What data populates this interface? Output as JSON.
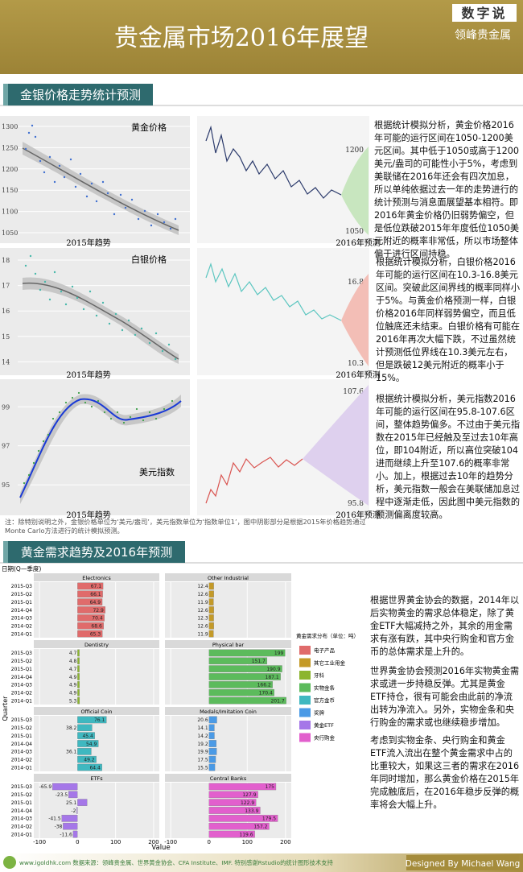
{
  "header": {
    "title": "贵金属市场2016年展望",
    "badge": "数字说",
    "brand": "领峰贵金属"
  },
  "section1": {
    "title": "金银价格走势统计预测",
    "rows": [
      {
        "name": "黄金价格",
        "ylim": [
          1033,
          1317
        ],
        "yticks": [
          1050,
          1100,
          1150,
          1200,
          1250,
          1300
        ],
        "trend_label": "2015年趋势",
        "forecast_label": "2016年预测",
        "upper": 1200,
        "lower": 1050,
        "text": "根据统计模拟分析，黄金价格2016年可能的运行区间在1050-1200美元区间。其中低于1050或高于1200美元/盎司的可能性小于5%，考虑到美联储在2016年还会有四次加息，所以单纯依据过去一年的走势进行的统计预测与消息面展望基本相符。即2016年黄金价格仍旧弱势偏空，但是低位跌破2015年年度低位1050美元附近的概率非常低，所以市场整体偏于进行区间持稳。"
      },
      {
        "name": "白银价格",
        "ylim": [
          13.6,
          18.35
        ],
        "yticks": [
          14,
          15,
          16,
          17,
          18
        ],
        "trend_label": "2015年趋势",
        "forecast_label": "2016年预测",
        "upper": 16.8,
        "lower": 10.3,
        "text": "根据统计模拟分析，白银价格2016年可能的运行区间在10.3-16.8美元区间。突破此区间界线的概率同样小于5%。与黄金价格预测一样，白银价格2016年同样弱势偏空，而且低位触底还未结束。白银价格有可能在2016年再次大幅下跌，不过虽然统计预测低位界线在10.3美元左右，但是跌破12美元附近的概率小于15%。"
      },
      {
        "name": "美元指数",
        "ylim": [
          93.6,
          100.25
        ],
        "yticks": [
          95,
          97,
          99
        ],
        "trend_label": "2015年趋势",
        "forecast_label": "2016年预测",
        "upper": 107.6,
        "lower": 95.8,
        "text": "根据统计模拟分析，美元指数2016年可能的运行区间在95.8-107.6区间，整体趋势偏多。不过由于美元指数在2015年已经触及至过去10年高位，即104附近，所以高位突破104进而继续上升至107.6的概率非常小。加上，根据过去10年的趋势分析，美元指数一般会在美联储加息过程中逐渐走低，因此图中美元指数的预测偏离度较高。"
      }
    ],
    "note": "注：除特别说明之外，金银价格单位为‘美元/盎司’，美元指数单位为‘指数单位1’，图中阴影部分是根据2015年价格趋势通过Monte Carlo方法进行的统计模拟预测。"
  },
  "section2": {
    "title": "黄金需求趋势及2016年预测",
    "paragraphs": [
      "根据世界黄金协会的数据，2014年以后实物黄金的需求总体稳定，除了黄金ETF大幅减持之外，其余的用金需求有涨有跌，其中央行购金和官方金币的总体需求是上升的。",
      "世界黄金协会预测2016年实物黄金需求或进一步持稳反弹。尤其是黄金ETF持仓，很有可能会由此前的净流出转为净流入。另外，实物金条和央行购金的需求或也继续稳步增加。",
      "考虑到实物金条、央行购金和黄金ETF流入流出在整个黄金需求中占的比重较大，如果这三者的需求在2016年同时增加，那么黄金价格在2015年完成触底后，在2016年稳步反弹的概率将会大幅上升。"
    ]
  },
  "chart_data": {
    "type": "bar",
    "axis_note": "日期(Q—季度)",
    "x_label": "Value",
    "y_label": "Quarter",
    "legend_title": "黄金需求分布（单位：吨）",
    "categories": [
      "2015-Q3",
      "2015-Q2",
      "2015-Q1",
      "2014-Q4",
      "2014-Q3",
      "2014-Q2",
      "2014-Q1"
    ],
    "xlim": [
      -115,
      215
    ],
    "xticks": [
      -100,
      0,
      100,
      200
    ],
    "grid": true,
    "series": [
      {
        "name": "Electronics",
        "legend": "电子产品",
        "color": "#e06b6b",
        "values": [
          67.1,
          66.1,
          64.9,
          72.9,
          70.4,
          68.6,
          65.3
        ]
      },
      {
        "name": "Other Industrial",
        "legend": "其它工业用金",
        "color": "#c49a28",
        "values": [
          12.4,
          12.6,
          11.9,
          12.6,
          12.3,
          12.6,
          11.9
        ]
      },
      {
        "name": "Dentistry",
        "legend": "牙科",
        "color": "#8cb52e",
        "values": [
          4.7,
          4.8,
          4.7,
          4.9,
          4.9,
          4.9,
          5.3
        ]
      },
      {
        "name": "Physical bar",
        "legend": "实物金条",
        "color": "#5cbb5c",
        "values": [
          199,
          151.7,
          190.9,
          187.1,
          166.2,
          170.4,
          201.7
        ]
      },
      {
        "name": "Official Coin",
        "legend": "官方金币",
        "color": "#3fb8c0",
        "values": [
          76.1,
          38.2,
          45.4,
          54.9,
          36.1,
          49.2,
          64.4
        ]
      },
      {
        "name": "Medals/Imitation Coin",
        "legend": "奖牌",
        "color": "#4a9ae6",
        "values": [
          20.6,
          14.1,
          14.2,
          19.2,
          19.9,
          17.5,
          15.5
        ]
      },
      {
        "name": "ETFs",
        "legend": "黄金ETF",
        "color": "#a577e8",
        "values": [
          -65.9,
          -23.5,
          25.1,
          -2,
          -41.5,
          -38,
          -11.6
        ]
      },
      {
        "name": "Central Banks",
        "legend": "央行购金",
        "color": "#e25fcd",
        "values": [
          175,
          127.9,
          122.9,
          133.9,
          179.5,
          157.2,
          119.6
        ]
      }
    ]
  },
  "footer": {
    "credits": "www.igoldhk.com 数据来源：领峰贵金属、世界黄金协会、CFA Institute、IMF. 特别感谢Rstudio的统计图形技术支持",
    "designer": "Designed By Michael Wang"
  }
}
